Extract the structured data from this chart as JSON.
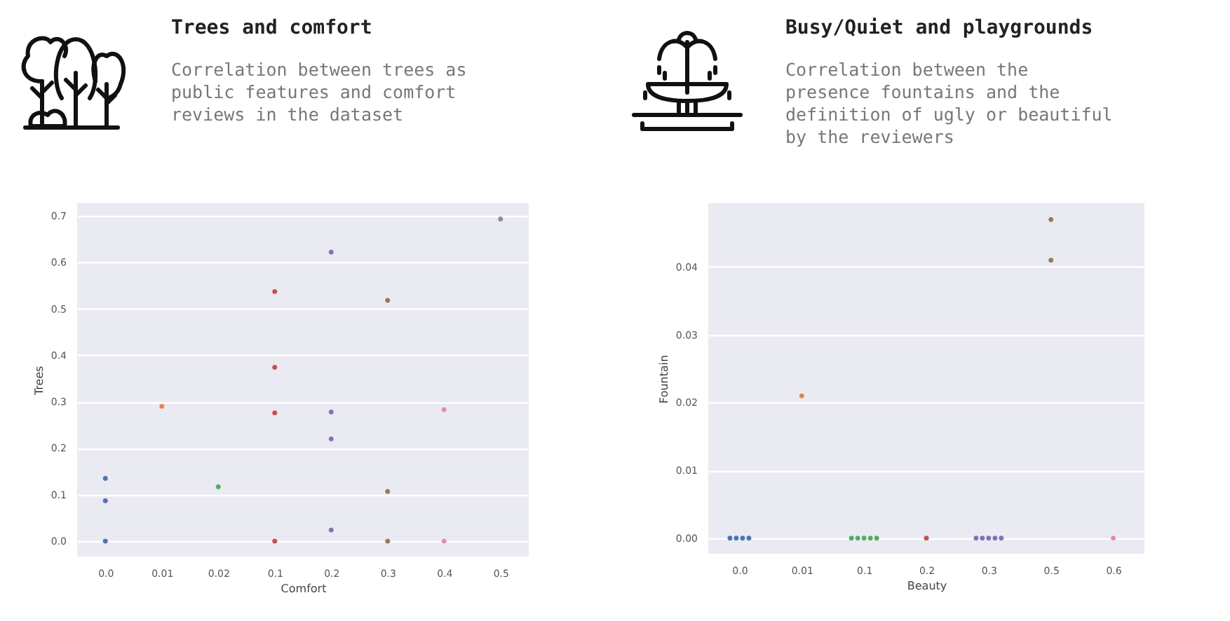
{
  "chart_data": [
    {
      "type": "scatter",
      "title": "Trees and comfort",
      "subtitle": "Correlation between trees as public features and comfort reviews in the dataset",
      "xlabel": "Comfort",
      "ylabel": "Trees",
      "categories": [
        "0.0",
        "0.01",
        "0.02",
        "0.1",
        "0.2",
        "0.3",
        "0.4",
        "0.5"
      ],
      "ylim": [
        -0.033,
        0.727
      ],
      "yticks": [
        {
          "value": 0,
          "label": "0.0"
        },
        0.1,
        0.2,
        0.3,
        0.4,
        0.5,
        0.6,
        0.7
      ],
      "grid": "y",
      "marker": "circle",
      "series": [
        {
          "color": "#4c72b0",
          "x": [
            "0.0",
            "0.0",
            "0.0"
          ],
          "values": [
            0.135,
            0.087,
            0.0
          ]
        },
        {
          "color": "#dd8452",
          "x": [
            "0.01"
          ],
          "values": [
            0.29
          ]
        },
        {
          "color": "#55a868",
          "x": [
            "0.02"
          ],
          "values": [
            0.117
          ]
        },
        {
          "color": "#c44e52",
          "x": [
            "0.1",
            "0.1",
            "0.1",
            "0.1"
          ],
          "values": [
            0.537,
            0.374,
            0.276,
            0.0
          ]
        },
        {
          "color": "#8172b3",
          "x": [
            "0.2",
            "0.2",
            "0.2",
            "0.2"
          ],
          "values": [
            0.622,
            0.278,
            0.22,
            0.024
          ]
        },
        {
          "color": "#937860",
          "x": [
            "0.3",
            "0.3",
            "0.3"
          ],
          "values": [
            0.518,
            0.107,
            0.0
          ]
        },
        {
          "color": "#da8bc3",
          "x": [
            "0.4",
            "0.4"
          ],
          "values": [
            0.283,
            0.0
          ]
        },
        {
          "color": "#8c8c8c",
          "x": [
            "0.5"
          ],
          "values": [
            0.693
          ]
        }
      ]
    },
    {
      "type": "scatter",
      "title": "Busy/Quiet and playgrounds",
      "subtitle": "Correlation between the presence fountains and the definition of ugly or beautiful by the reviewers",
      "xlabel": "Beauty",
      "ylabel": "Fountain",
      "categories": [
        "0.0",
        "0.01",
        "0.1",
        "0.2",
        "0.3",
        "0.5",
        "0.6"
      ],
      "ylim": [
        -0.0023,
        0.0494
      ],
      "yticks": [
        {
          "value": 0,
          "label": "0.00"
        },
        0.01,
        0.02,
        0.03,
        0.04
      ],
      "grid": "y",
      "marker": "circle",
      "series": [
        {
          "color": "#4c72b0",
          "x": [
            "0.0",
            "0.0",
            "0.0",
            "0.0"
          ],
          "values": [
            0,
            0,
            0,
            0
          ]
        },
        {
          "color": "#dd8452",
          "x": [
            "0.01"
          ],
          "values": [
            0.021
          ]
        },
        {
          "color": "#55a868",
          "x": [
            "0.1",
            "0.1",
            "0.1",
            "0.1",
            "0.1"
          ],
          "values": [
            0,
            0,
            0,
            0,
            0
          ]
        },
        {
          "color": "#c44e52",
          "x": [
            "0.2"
          ],
          "values": [
            0
          ]
        },
        {
          "color": "#8172b3",
          "x": [
            "0.3",
            "0.3",
            "0.3",
            "0.3",
            "0.3"
          ],
          "values": [
            0,
            0,
            0,
            0,
            0
          ]
        },
        {
          "color": "#937860",
          "x": [
            "0.5",
            "0.5"
          ],
          "values": [
            0.047,
            0.041
          ]
        },
        {
          "color": "#da8bc3",
          "x": [
            "0.6"
          ],
          "values": [
            0
          ]
        }
      ]
    }
  ]
}
